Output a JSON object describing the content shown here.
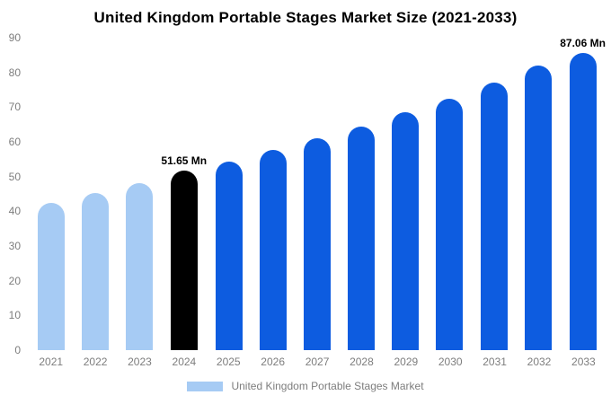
{
  "chart_data": {
    "type": "bar",
    "title": "United Kingdom Portable Stages Market Size (2021-2033)",
    "categories": [
      "2021",
      "2022",
      "2023",
      "2024",
      "2025",
      "2026",
      "2027",
      "2028",
      "2029",
      "2030",
      "2031",
      "2032",
      "2033"
    ],
    "values": [
      42.5,
      45.3,
      48.2,
      51.65,
      54.3,
      57.7,
      61.0,
      64.4,
      68.5,
      72.4,
      77.0,
      81.9,
      87.06
    ],
    "bar_colors": [
      "#a6cbf4",
      "#a6cbf4",
      "#a6cbf4",
      "#000000",
      "#0d5ce0",
      "#0d5ce0",
      "#0d5ce0",
      "#0d5ce0",
      "#0d5ce0",
      "#0d5ce0",
      "#0d5ce0",
      "#0d5ce0",
      "#0d5ce0"
    ],
    "point_labels": {
      "2024": "51.65 Mn",
      "2033": "87.06 Mn"
    },
    "xlabel": "",
    "ylabel": "",
    "ylim": [
      0,
      90
    ],
    "y_ticks": [
      0,
      10,
      20,
      30,
      40,
      50,
      60,
      70,
      80,
      90
    ],
    "grid": false,
    "legend_position": "bottom"
  },
  "legend": {
    "label": "United Kingdom Portable Stages Market",
    "swatch_color": "#a6cbf4"
  }
}
